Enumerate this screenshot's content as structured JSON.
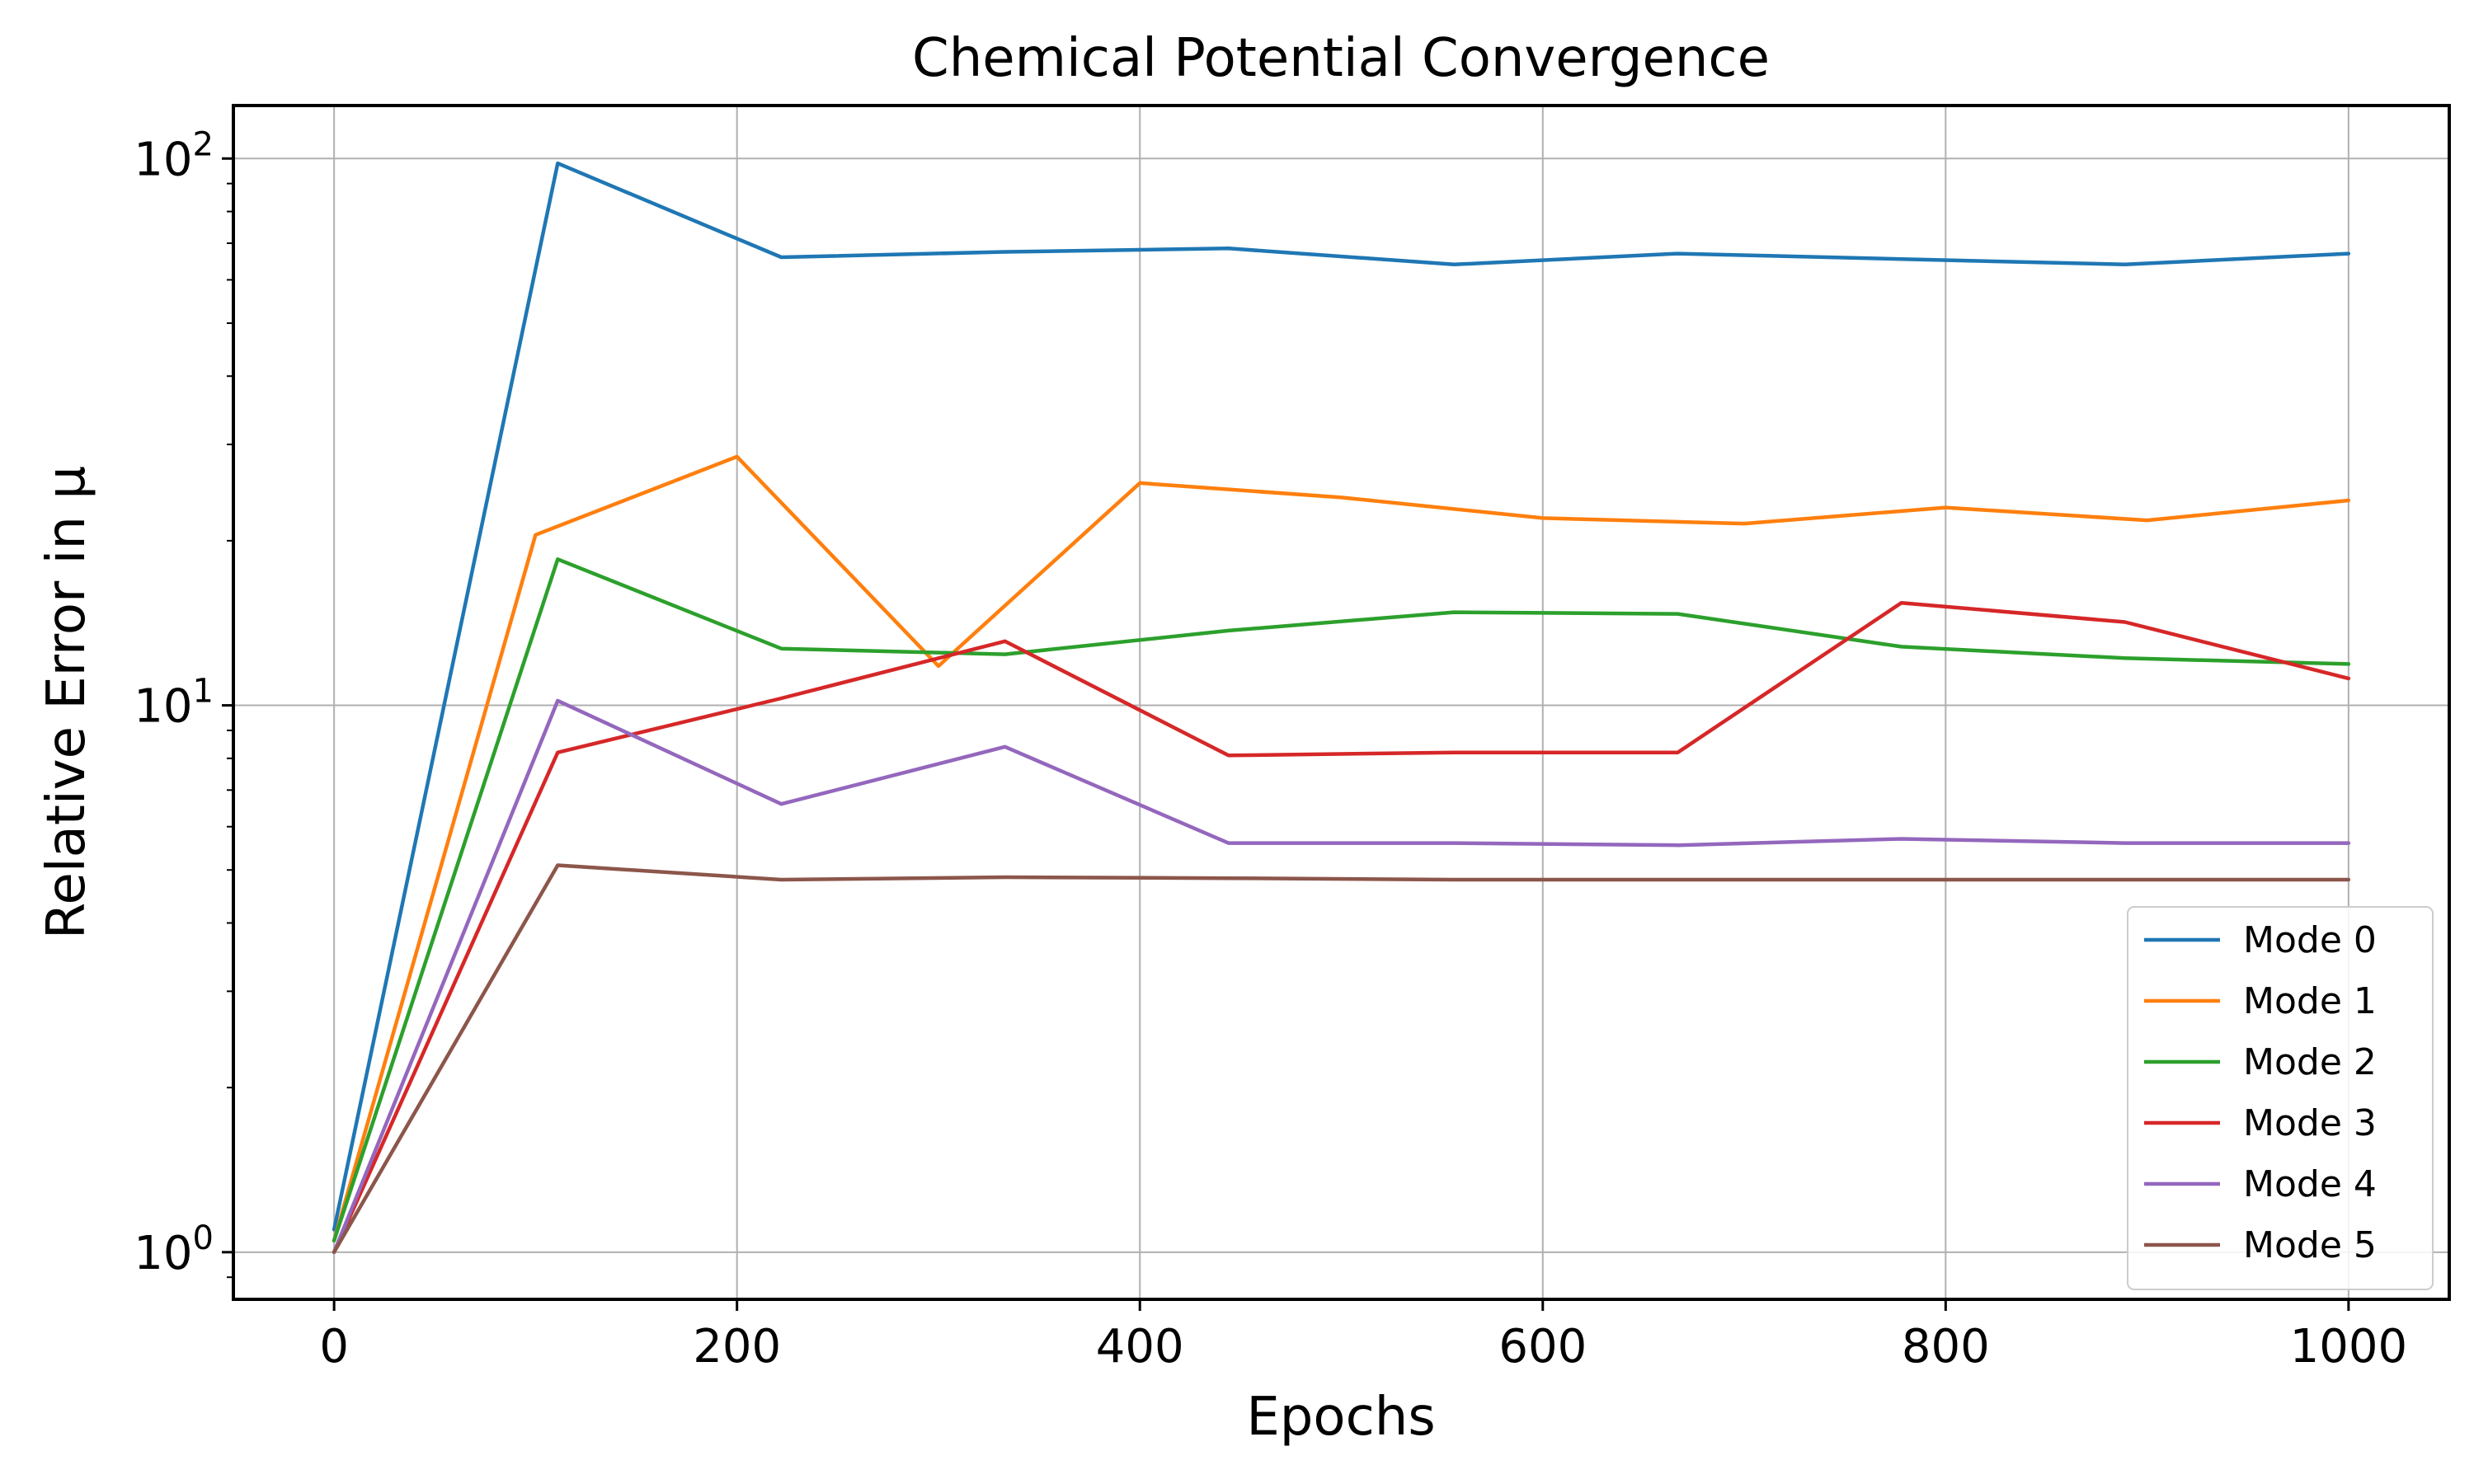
{
  "chart_data": {
    "type": "line",
    "title": "Chemical Potential Convergence",
    "xlabel": "Epochs",
    "ylabel": "Relative Error in μ",
    "yscale": "log",
    "xlim": [
      -50,
      1050
    ],
    "ylim": [
      0.82,
      125
    ],
    "x_ticks": [
      "0",
      "200",
      "400",
      "600",
      "800",
      "1000"
    ],
    "y_ticks": [
      {
        "value": 1,
        "base": "10",
        "exp": "0"
      },
      {
        "value": 10,
        "base": "10",
        "exp": "1"
      },
      {
        "value": 100,
        "base": "10",
        "exp": "2"
      }
    ],
    "grid": true,
    "legend_position": "lower-right",
    "series": [
      {
        "name": "Mode 0",
        "color": "#1f77b4",
        "x": [
          0,
          111,
          222,
          333,
          444,
          556,
          667,
          778,
          889,
          1000
        ],
        "y": [
          1.1,
          98,
          66,
          67.5,
          68.5,
          64,
          67,
          65.5,
          64,
          67
        ]
      },
      {
        "name": "Mode 1",
        "color": "#ff7f0e",
        "x": [
          0,
          100,
          200,
          300,
          400,
          500,
          600,
          700,
          800,
          900,
          1000
        ],
        "y": [
          1.05,
          20.5,
          28.5,
          11.8,
          25.5,
          24,
          22,
          21.5,
          23,
          21.8,
          23.7
        ]
      },
      {
        "name": "Mode 2",
        "color": "#2ca02c",
        "x": [
          0,
          111,
          222,
          333,
          444,
          556,
          667,
          778,
          889,
          1000
        ],
        "y": [
          1.05,
          18.5,
          12.7,
          12.4,
          13.7,
          14.8,
          14.7,
          12.8,
          12.2,
          11.9
        ]
      },
      {
        "name": "Mode 3",
        "color": "#d62728",
        "x": [
          0,
          111,
          222,
          333,
          444,
          556,
          667,
          778,
          889,
          1000
        ],
        "y": [
          1.0,
          8.2,
          10.3,
          13.1,
          8.1,
          8.2,
          8.2,
          15.4,
          14.2,
          11.2
        ]
      },
      {
        "name": "Mode 4",
        "color": "#9467bd",
        "x": [
          0,
          111,
          222,
          333,
          444,
          556,
          667,
          778,
          889,
          1000
        ],
        "y": [
          1.0,
          10.2,
          6.6,
          8.4,
          5.6,
          5.6,
          5.55,
          5.7,
          5.6,
          5.6
        ]
      },
      {
        "name": "Mode 5",
        "color": "#8c564b",
        "x": [
          0,
          111,
          222,
          333,
          444,
          556,
          667,
          778,
          889,
          1000
        ],
        "y": [
          1.0,
          5.1,
          4.8,
          4.85,
          4.83,
          4.8,
          4.8,
          4.8,
          4.8,
          4.8
        ]
      }
    ]
  }
}
